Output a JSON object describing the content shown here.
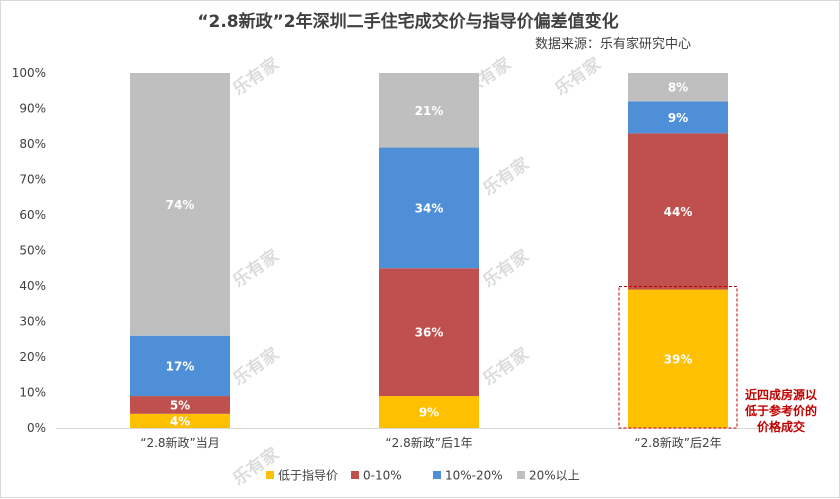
{
  "chart_data": {
    "type": "bar",
    "stacked": true,
    "title": "“2.8新政”2年深圳二手住宅成交价与指导价偏差值变化",
    "source": "数据来源：乐有家研究中心",
    "categories": [
      "“2.8新政”当月",
      "“2.8新政”后1年",
      "“2.8新政”后2年"
    ],
    "y_ticks": [
      "0%",
      "10%",
      "20%",
      "30%",
      "40%",
      "50%",
      "60%",
      "70%",
      "80%",
      "90%",
      "100%"
    ],
    "ylim": [
      0,
      100
    ],
    "grid": false,
    "legend_position": "bottom",
    "series": [
      {
        "name": "低于指导价",
        "color": "#FFC000",
        "values": [
          4,
          9,
          39
        ],
        "labels": [
          "4%",
          "9%",
          "39%"
        ]
      },
      {
        "name": "0-10%",
        "color": "#C0504D",
        "values": [
          5,
          36,
          44
        ],
        "labels": [
          "5%",
          "36%",
          "44%"
        ]
      },
      {
        "name": "10%-20%",
        "color": "#4F8FD8",
        "values": [
          17,
          34,
          9
        ],
        "labels": [
          "17%",
          "34%",
          "9%"
        ]
      },
      {
        "name": "20%以上",
        "color": "#BFBFBF",
        "values": [
          74,
          21,
          8
        ],
        "labels": [
          "74%",
          "21%",
          "8%"
        ]
      }
    ],
    "annotation": {
      "lines": [
        "近四成房源以",
        "低于参考价的",
        "价格成交"
      ],
      "color": "#C00000"
    },
    "watermark": "乐有家"
  }
}
